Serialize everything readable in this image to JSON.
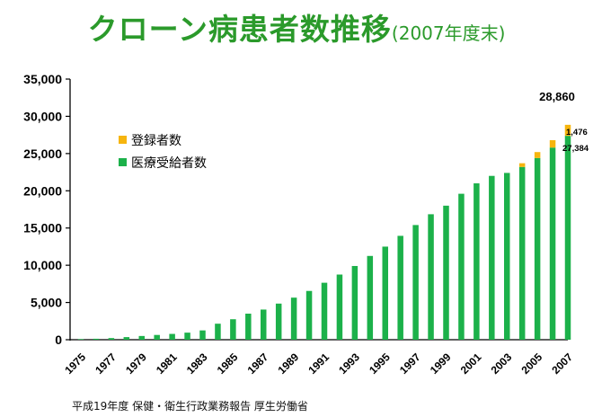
{
  "title": "クローン病患者数推移",
  "subtitle": "(2007年度末)",
  "source": "平成19年度 保健・衛生行政業務報告  厚生労働省",
  "colors": {
    "title": "#2b9a2b",
    "registered": "#f6b50e",
    "medical": "#1cb14a",
    "axis": "#000000"
  },
  "chart_data": {
    "type": "bar",
    "stacked": true,
    "categories": [
      "1975",
      "1976",
      "1977",
      "1978",
      "1979",
      "1980",
      "1981",
      "1982",
      "1983",
      "1984",
      "1985",
      "1986",
      "1987",
      "1988",
      "1989",
      "1990",
      "1991",
      "1992",
      "1993",
      "1994",
      "1995",
      "1996",
      "1997",
      "1998",
      "1999",
      "2000",
      "2001",
      "2002",
      "2003",
      "2004",
      "2005",
      "2006",
      "2007"
    ],
    "tick_labels": [
      "1975",
      "1977",
      "1979",
      "1981",
      "1983",
      "1985",
      "1987",
      "1989",
      "1991",
      "1993",
      "1995",
      "1997",
      "1999",
      "2001",
      "2003",
      "2005",
      "2007"
    ],
    "series": [
      {
        "name": "医療受給者数",
        "color": "#1cb14a",
        "values": [
          80,
          130,
          220,
          350,
          500,
          640,
          780,
          950,
          1250,
          2150,
          2750,
          3500,
          4050,
          4850,
          5650,
          6550,
          7650,
          8750,
          9900,
          11250,
          12500,
          13950,
          15400,
          16850,
          18000,
          19600,
          21000,
          22000,
          22400,
          23200,
          24400,
          25800,
          27384
        ]
      },
      {
        "name": "登録者数",
        "color": "#f6b50e",
        "values": [
          0,
          0,
          0,
          0,
          0,
          0,
          0,
          0,
          0,
          0,
          0,
          0,
          0,
          0,
          0,
          0,
          0,
          0,
          0,
          0,
          0,
          0,
          0,
          0,
          0,
          0,
          0,
          0,
          0,
          500,
          800,
          1000,
          1476
        ]
      }
    ],
    "y_ticks": [
      "0",
      "5,000",
      "10,000",
      "15,000",
      "20,000",
      "25,000",
      "30,000",
      "35,000"
    ],
    "ylim": [
      0,
      35000
    ],
    "annotations": {
      "total": "28,860",
      "registered": "1,476",
      "medical": "27,384"
    },
    "legend_position": "upper-left",
    "grid": false
  }
}
